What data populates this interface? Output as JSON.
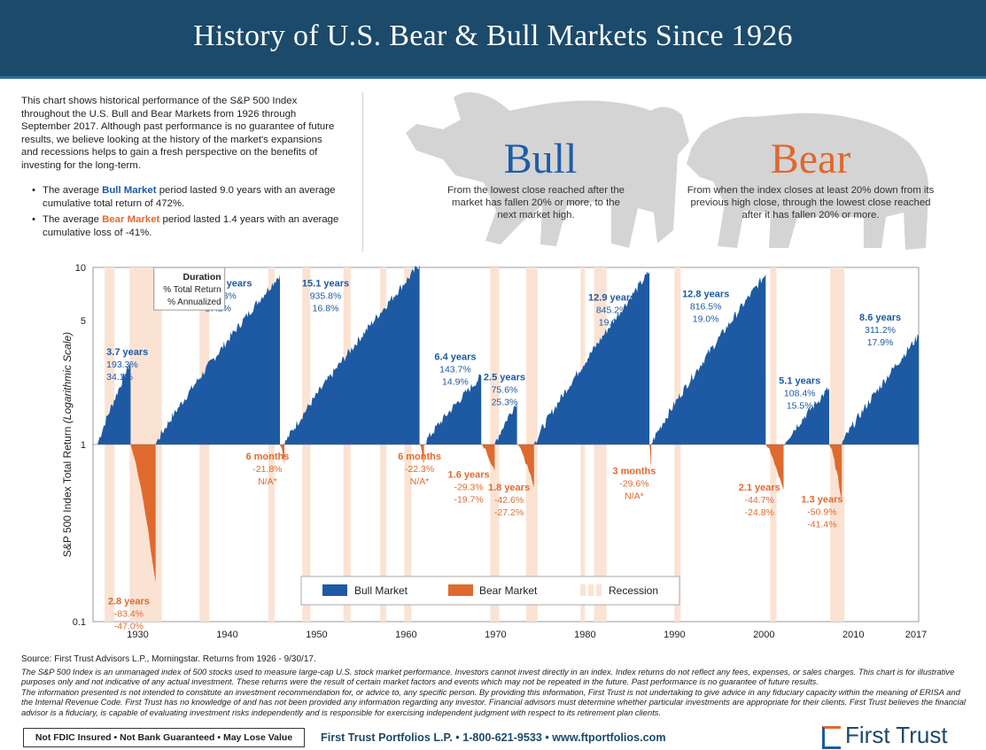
{
  "header": {
    "title": "History of U.S. Bear & Bull Markets Since 1926"
  },
  "intro": {
    "paragraph": "This chart shows historical performance of the S&P 500 Index throughout the U.S. Bull and Bear Markets from 1926 through September 2017. Although past performance is no guarantee of future results, we believe looking at the history of the market's expansions and recessions helps to gain a fresh perspective on the benefits of investing for the long-term.",
    "bullet1_pre": "The average ",
    "bullet1_key": "Bull Market",
    "bullet1_post": " period lasted 9.0 years with an average cumulative total return of 472%.",
    "bullet2_pre": "The average ",
    "bullet2_key": "Bear Market",
    "bullet2_post": " period lasted 1.4 years with an average cumulative loss of -41%."
  },
  "definitions": {
    "bull_title": "Bull",
    "bull_text": "From the lowest close reached after the market has fallen 20% or more, to the next market high.",
    "bear_title": "Bear",
    "bear_text": "From when the index closes at least 20% down from its previous high close, through the lowest close reached after it has fallen 20% or more."
  },
  "colors": {
    "bull": "#1d5aa3",
    "bear": "#e06a2d",
    "recession": "#fbe3d4",
    "header": "#1b4a6b"
  },
  "chart_data": {
    "type": "area",
    "ylabel": "S&P 500 Index Total Return",
    "ylabel_italic": "(Logarithmic Scale)",
    "yscale": "log",
    "ylim": [
      0.1,
      10
    ],
    "y_ticks": [
      0.1,
      1,
      5,
      10
    ],
    "x_ticks": [
      1930,
      1940,
      1950,
      1960,
      1970,
      1980,
      1990,
      2000,
      2010,
      2017
    ],
    "xlim": [
      1925.5,
      2017.8
    ],
    "grid": false,
    "legend": {
      "position": "bottom",
      "items": [
        "Bull Market",
        "Bear Market",
        "Recession"
      ]
    },
    "key_box": {
      "line1": "Duration",
      "line2": "% Total Return",
      "line3": "% Annualized"
    },
    "recessions": [
      [
        1926.8,
        1927.9
      ],
      [
        1929.6,
        1933.2
      ],
      [
        1937.4,
        1938.5
      ],
      [
        1945.1,
        1945.8
      ],
      [
        1948.9,
        1949.8
      ],
      [
        1953.5,
        1954.3
      ],
      [
        1957.6,
        1958.3
      ],
      [
        1960.3,
        1961.1
      ],
      [
        1969.9,
        1970.9
      ],
      [
        1973.9,
        1975.2
      ],
      [
        1980.0,
        1980.5
      ],
      [
        1981.5,
        1982.9
      ],
      [
        1990.5,
        1991.2
      ],
      [
        2001.2,
        2001.9
      ],
      [
        2007.9,
        2009.5
      ]
    ],
    "bull_markets": [
      {
        "start": 1926.0,
        "end": 1929.7,
        "peak": 2.933,
        "duration": "3.7 years",
        "total_return": "193.3%",
        "annualized": "34.1%"
      },
      {
        "start": 1932.5,
        "end": 1946.4,
        "peak": 9.153,
        "duration": "13.9 years",
        "total_return": "815.3%",
        "annualized": "17.2%"
      },
      {
        "start": 1946.9,
        "end": 1962.0,
        "peak": 10.358,
        "duration": "15.1 years",
        "total_return": "935.8%",
        "annualized": "16.8%"
      },
      {
        "start": 1962.5,
        "end": 1968.9,
        "peak": 2.437,
        "duration": "6.4 years",
        "total_return": "143.7%",
        "annualized": "14.9%"
      },
      {
        "start": 1970.4,
        "end": 1972.9,
        "peak": 1.756,
        "duration": "2.5 years",
        "total_return": "75.6%",
        "annualized": "25.3%"
      },
      {
        "start": 1974.8,
        "end": 1987.7,
        "peak": 9.452,
        "duration": "12.9 years",
        "total_return": "845.2%",
        "annualized": "19.0%"
      },
      {
        "start": 1987.9,
        "end": 2000.7,
        "peak": 9.165,
        "duration": "12.8 years",
        "total_return": "816.5%",
        "annualized": "19.0%"
      },
      {
        "start": 2002.7,
        "end": 2007.8,
        "peak": 2.084,
        "duration": "5.1 years",
        "total_return": "108.4%",
        "annualized": "15.5%"
      },
      {
        "start": 2009.2,
        "end": 2017.8,
        "peak": 4.112,
        "duration": "8.6 years",
        "total_return": "311.2%",
        "annualized": "17.9%"
      }
    ],
    "bear_markets": [
      {
        "start": 1929.7,
        "end": 1932.5,
        "trough": 0.166,
        "duration": "2.8 years",
        "total_return": "-83.4%",
        "annualized": "-47.0%"
      },
      {
        "start": 1946.4,
        "end": 1946.9,
        "trough": 0.782,
        "duration": "6 months",
        "total_return": "-21.8%",
        "annualized": "N/A*"
      },
      {
        "start": 1962.0,
        "end": 1962.5,
        "trough": 0.777,
        "duration": "6 months",
        "total_return": "-22.3%",
        "annualized": "N/A*"
      },
      {
        "start": 1968.9,
        "end": 1970.4,
        "trough": 0.707,
        "duration": "1.6 years",
        "total_return": "-29.3%",
        "annualized": "-19.7%"
      },
      {
        "start": 1972.9,
        "end": 1974.8,
        "trough": 0.574,
        "duration": "1.8 years",
        "total_return": "-42.6%",
        "annualized": "-27.2%"
      },
      {
        "start": 1987.7,
        "end": 1987.9,
        "trough": 0.704,
        "duration": "3 months",
        "total_return": "-29.6%",
        "annualized": "N/A*"
      },
      {
        "start": 2000.7,
        "end": 2002.7,
        "trough": 0.553,
        "duration": "2.1 years",
        "total_return": "-44.7%",
        "annualized": "-24.8%"
      },
      {
        "start": 2007.8,
        "end": 2009.2,
        "trough": 0.491,
        "duration": "1.3 years",
        "total_return": "-50.9%",
        "annualized": "-41.4%"
      }
    ]
  },
  "footer": {
    "source": "Source: First Trust Advisors L.P., Morningstar. Returns from 1926 - 9/30/17.",
    "disclaimer1": "The S&P 500 Index is an unmanaged index of 500 stocks used to measure large-cap U.S. stock market performance. Investors cannot invest directly in an index. Index returns do not reflect any fees, expenses, or sales charges. This chart is for illustrative purposes only and not indicative of any actual investment. These returns were the result of certain market factors and events which may not be repeated in the future. Past performance is no guarantee of future results.",
    "disclaimer2": "The information presented is not intended to constitute an investment recommendation for, or advice to, any specific person. By providing this information, First Trust is not undertaking to give advice in any fiduciary capacity within the meaning of ERISA and the Internal Revenue Code. First Trust has no knowledge of and has not been provided any information regarding any investor. Financial advisors must determine whether particular investments are appropriate for their clients. First Trust believes the financial advisor is a fiduciary, is capable of evaluating investment risks independently and is responsible for exercising independent judgment with respect to its retirement plan clients.",
    "fdic": "Not FDIC Insured • Not Bank Guaranteed • May Lose Value",
    "contact": "First Trust Portfolios L.P. • 1-800-621-9533 • www.ftportfolios.com",
    "logo": "First Trust"
  }
}
